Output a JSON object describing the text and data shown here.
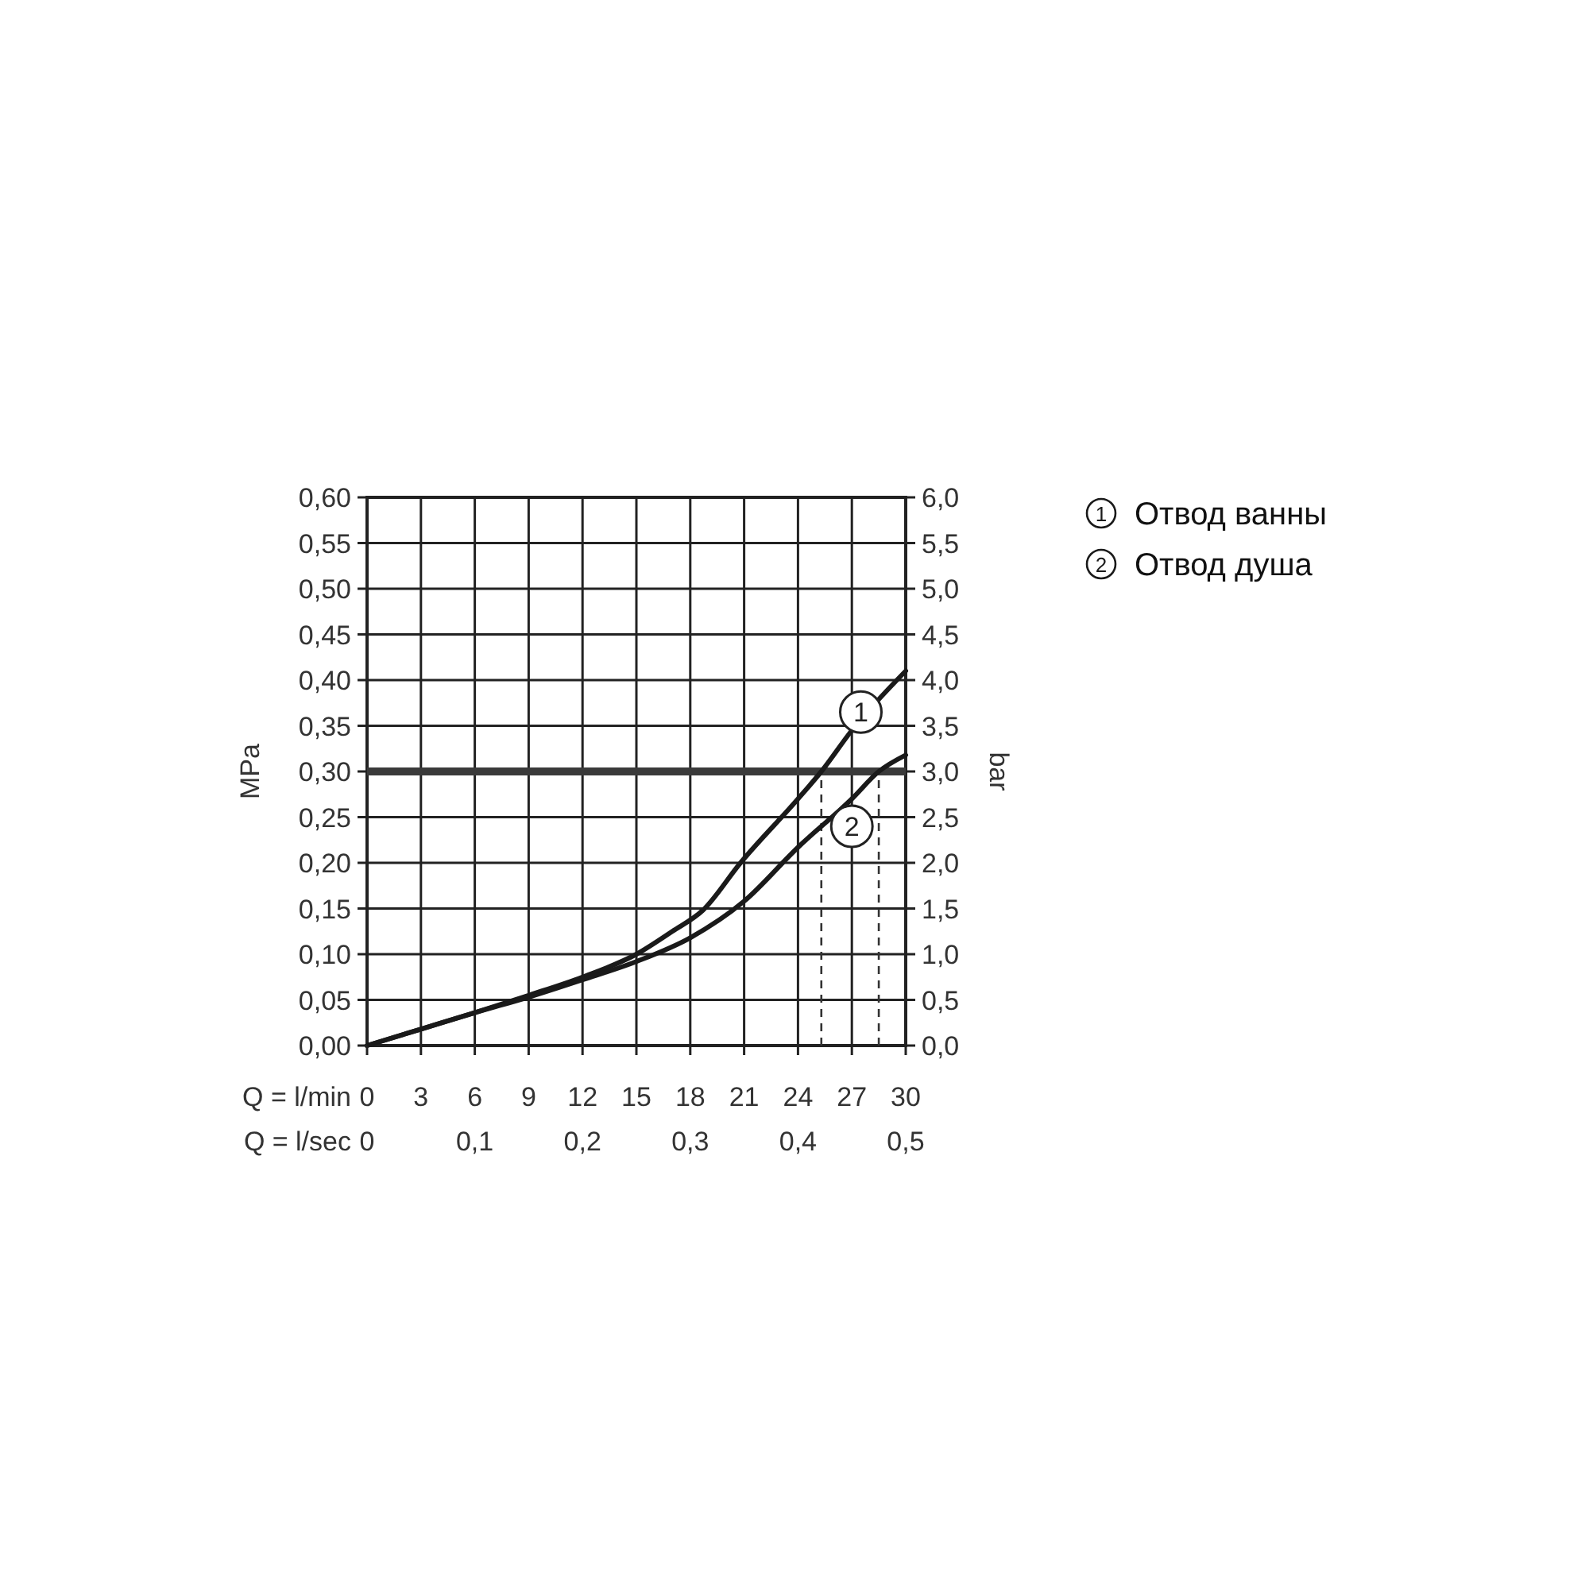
{
  "chart_data": {
    "type": "line",
    "ylabel": "MPa",
    "y2label": "bar",
    "xlabel": "Q = l/min",
    "x2label": "Q = l/sec",
    "xlim": [
      0,
      30
    ],
    "xticks": [
      0,
      3,
      6,
      9,
      12,
      15,
      18,
      21,
      24,
      27,
      30
    ],
    "x2lim": [
      0,
      0.5
    ],
    "x2ticks": [
      0,
      {
        "value": 0.1,
        "label": "0,1"
      },
      {
        "value": 0.2,
        "label": "0,2"
      },
      {
        "value": 0.3,
        "label": "0,3"
      },
      {
        "value": 0.4,
        "label": "0,4"
      },
      {
        "value": 0.5,
        "label": "0,5"
      }
    ],
    "ylim": [
      0,
      0.6
    ],
    "yticks": [
      {
        "value": 0,
        "label": "0,00"
      },
      {
        "value": 0.05,
        "label": "0,05"
      },
      {
        "value": 0.1,
        "label": "0,10"
      },
      {
        "value": 0.15,
        "label": "0,15"
      },
      {
        "value": 0.2,
        "label": "0,20"
      },
      {
        "value": 0.25,
        "label": "0,25"
      },
      {
        "value": 0.3,
        "label": "0,30"
      },
      {
        "value": 0.35,
        "label": "0,35"
      },
      {
        "value": 0.4,
        "label": "0,40"
      },
      {
        "value": 0.45,
        "label": "0,45"
      },
      {
        "value": 0.5,
        "label": "0,50"
      },
      {
        "value": 0.55,
        "label": "0,55"
      },
      {
        "value": 0.6,
        "label": "0,60"
      }
    ],
    "y2lim": [
      0,
      6
    ],
    "y2ticks": [
      {
        "value": 0,
        "label": "0,0"
      },
      {
        "value": 0.5,
        "label": "0,5"
      },
      {
        "value": 1,
        "label": "1,0"
      },
      {
        "value": 1.5,
        "label": "1,5"
      },
      {
        "value": 2,
        "label": "2,0"
      },
      {
        "value": 2.5,
        "label": "2,5"
      },
      {
        "value": 3,
        "label": "3,0"
      },
      {
        "value": 3.5,
        "label": "3,5"
      },
      {
        "value": 4,
        "label": "4,0"
      },
      {
        "value": 4.5,
        "label": "4,5"
      },
      {
        "value": 5,
        "label": "5,0"
      },
      {
        "value": 5.5,
        "label": "5,5"
      },
      {
        "value": 6,
        "label": "6,0"
      }
    ],
    "grid": true,
    "legend": "right",
    "line_style": "solid",
    "series": [
      {
        "name": "Отвод ванны",
        "color": "#1a1a1a",
        "x": [
          0,
          3,
          6,
          9,
          12,
          15,
          17,
          18.7,
          20.8,
          24,
          25.3,
          27,
          30
        ],
        "values": [
          0,
          0.018,
          0.036,
          0.055,
          0.075,
          0.1,
          0.125,
          0.148,
          0.2,
          0.27,
          0.3,
          0.345,
          0.41
        ]
      },
      {
        "name": "Отвод душа",
        "color": "#1a1a1a",
        "x": [
          0,
          3,
          6,
          9,
          12,
          15,
          18,
          21,
          24,
          27,
          28.5,
          30
        ],
        "values": [
          0,
          0.018,
          0.036,
          0.053,
          0.072,
          0.092,
          0.118,
          0.158,
          0.217,
          0.27,
          0.3,
          0.318
        ]
      }
    ],
    "ref_lines": [
      {
        "axis": "y",
        "value": 0.3,
        "color": "#3a3a3a",
        "line_style": "solid"
      },
      {
        "axis": "x",
        "value": 25.3,
        "color": "#333333",
        "line_style": "dashed"
      },
      {
        "axis": "x",
        "value": 28.5,
        "color": "#333333",
        "line_style": "dashed"
      }
    ],
    "annotations": [
      {
        "text": "1",
        "x": 27.5,
        "y": 0.365
      },
      {
        "text": "2",
        "x": 27,
        "y": 0.24
      }
    ]
  }
}
